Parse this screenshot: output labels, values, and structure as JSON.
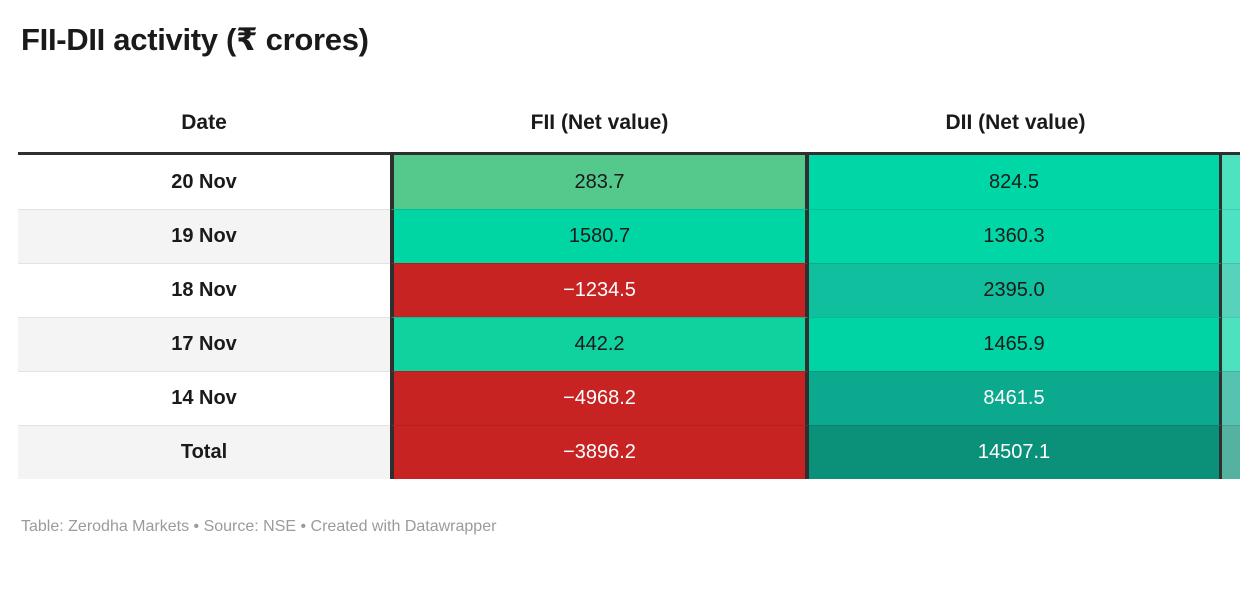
{
  "title": "FII-DII activity (₹ crores)",
  "table": {
    "columns": [
      {
        "label": "Date"
      },
      {
        "label": "FII (Net value)"
      },
      {
        "label": "DII (Net value)"
      }
    ],
    "rows": [
      {
        "date": "20 Nov",
        "fii": "283.7",
        "dii": "824.5",
        "fii_bg": "#54c98b",
        "fii_fg": "#1a1a1a",
        "dii_bg": "#00d7a6",
        "dii_fg": "#1a1a1a"
      },
      {
        "date": "19 Nov",
        "fii": "1580.7",
        "dii": "1360.3",
        "fii_bg": "#00d5a4",
        "fii_fg": "#1a1a1a",
        "dii_bg": "#00d6a6",
        "dii_fg": "#1a1a1a"
      },
      {
        "date": "18 Nov",
        "fii": "−1234.5",
        "dii": "2395.0",
        "fii_bg": "#c72323",
        "fii_fg": "#ffffff",
        "dii_bg": "#0fbf9d",
        "dii_fg": "#1a1a1a"
      },
      {
        "date": "17 Nov",
        "fii": "442.2",
        "dii": "1465.9",
        "fii_bg": "#0fd29f",
        "fii_fg": "#1a1a1a",
        "dii_bg": "#00d4a5",
        "dii_fg": "#1a1a1a"
      },
      {
        "date": "14 Nov",
        "fii": "−4968.2",
        "dii": "8461.5",
        "fii_bg": "#c72323",
        "fii_fg": "#ffffff",
        "dii_bg": "#0ba98e",
        "dii_fg": "#ffffff"
      },
      {
        "date": "Total",
        "fii": "−3896.2",
        "dii": "14507.1",
        "fii_bg": "#c72323",
        "fii_fg": "#ffffff",
        "dii_bg": "#0b9179",
        "dii_fg": "#ffffff"
      }
    ]
  },
  "footer": {
    "text": "Table: Zerodha Markets • Source: NSE • Created with Datawrapper"
  },
  "colors": {
    "negative_red": "#c72323",
    "border_dark": "#2f2f2f",
    "zebra_gray": "#f4f4f4",
    "footer_gray": "#9b9b9b",
    "text_dark": "#1a1a1a"
  },
  "chart_data": {
    "type": "table",
    "title": "FII-DII activity (₹ crores)",
    "columns": [
      "Date",
      "FII (Net value)",
      "DII (Net value)"
    ],
    "rows": [
      [
        "20 Nov",
        283.7,
        824.5
      ],
      [
        "19 Nov",
        1580.7,
        1360.3
      ],
      [
        "18 Nov",
        -1234.5,
        2395.0
      ],
      [
        "17 Nov",
        442.2,
        1465.9
      ],
      [
        "14 Nov",
        -4968.2,
        8461.5
      ],
      [
        "Total",
        -3896.2,
        14507.1
      ]
    ],
    "layout_hints": "heatmap-colored cells: red for negative values, green→dark teal scale for increasing positive values; white text on dark cells",
    "source": "Table: Zerodha Markets • Source: NSE • Created with Datawrapper"
  }
}
